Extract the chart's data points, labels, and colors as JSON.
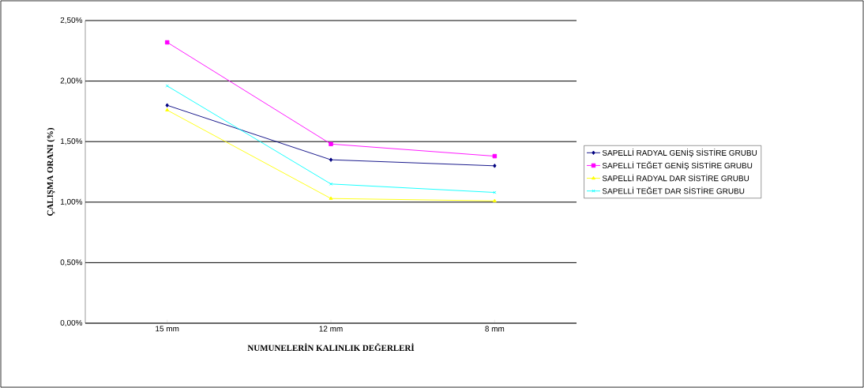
{
  "chart_data": {
    "type": "line",
    "xlabel": "NUMUNELERİN KALINLIK DEĞERLERİ",
    "ylabel": "ÇALIŞMA ORANI (%)",
    "categories": [
      "15 mm",
      "12 mm",
      "8 mm"
    ],
    "series": [
      {
        "name": "SAPELLİ RADYAL GENİŞ SİSTİRE GRUBU",
        "color": "#000080",
        "marker": "diamond",
        "values": [
          1.8,
          1.35,
          1.3
        ]
      },
      {
        "name": "SAPELLİ TEĞET GENİŞ SİSTİRE GRUBU",
        "color": "#ff00ff",
        "marker": "square",
        "values": [
          2.32,
          1.48,
          1.38
        ]
      },
      {
        "name": "SAPELLİ RADYAL DAR SİSTİRE GRUBU",
        "color": "#ffff00",
        "marker": "triangle",
        "values": [
          1.76,
          1.03,
          1.01
        ]
      },
      {
        "name": "SAPELLİ TEĞET DAR SİSTİRE GRUBU",
        "color": "#00ffff",
        "marker": "cross",
        "values": [
          1.96,
          1.15,
          1.08
        ]
      }
    ],
    "ylim": [
      0,
      2.5
    ],
    "yticks": [
      {
        "value": 0,
        "label": "0,00%"
      },
      {
        "value": 0.5,
        "label": "0,50%"
      },
      {
        "value": 1,
        "label": "1,00%"
      },
      {
        "value": 1.5,
        "label": "1,50%"
      },
      {
        "value": 2,
        "label": "2,00%"
      },
      {
        "value": 2.5,
        "label": "2,50%"
      }
    ],
    "grid": "y",
    "legend": "right",
    "line_style": "solid"
  }
}
